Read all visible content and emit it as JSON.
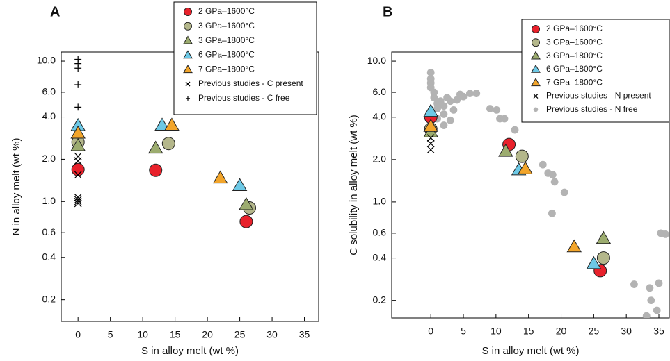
{
  "chart_data": [
    {
      "type": "scatter",
      "title": "A",
      "xlabel": "S in alloy melt (wt %)",
      "ylabel": "N in alloy melt (wt %)",
      "xlim": [
        -2.6,
        37.2
      ],
      "xticks": [
        0,
        5,
        10,
        15,
        20,
        25,
        30,
        35
      ],
      "ylim": [
        0.14,
        11.6
      ],
      "log_y": true,
      "yticks": [
        0.2,
        0.4,
        0.6,
        {
          "value": 1,
          "label": "1.0"
        },
        {
          "value": 2,
          "label": "2.0"
        },
        {
          "value": 4,
          "label": "4.0"
        },
        {
          "value": 6,
          "label": "6.0"
        },
        {
          "value": 10,
          "label": "10.0"
        }
      ],
      "legend": "upper right",
      "series": [
        {
          "name": "2 GPa–1600°C",
          "color": "#e8212b",
          "marker": "circle",
          "x": [
            0,
            12,
            26
          ],
          "values": [
            1.69,
            1.67,
            0.72
          ]
        },
        {
          "name": "3 GPa–1600°C",
          "color": "#b4b78b",
          "marker": "circle",
          "x": [
            0,
            14,
            26.5
          ],
          "values": [
            2.65,
            2.59,
            0.9
          ]
        },
        {
          "name": "3 GPa–1800°C",
          "color": "#9cac6f",
          "marker": "triangle",
          "x": [
            0,
            12,
            26
          ],
          "values": [
            2.5,
            2.4,
            0.95
          ]
        },
        {
          "name": "6 GPa–1800°C",
          "color": "#6dc9e6",
          "marker": "triangle",
          "x": [
            0,
            13,
            25
          ],
          "values": [
            3.48,
            3.5,
            1.3
          ]
        },
        {
          "name": "7 GPa–1800°C",
          "color": "#f2a52b",
          "marker": "triangle",
          "x": [
            0,
            14.5,
            22
          ],
          "values": [
            3.07,
            3.5,
            1.47
          ]
        },
        {
          "name": "Previous studies - C present",
          "color": "#000000",
          "marker": "x",
          "x": [
            0,
            0,
            0,
            0,
            0,
            0,
            0
          ],
          "values": [
            0.97,
            1.0,
            1.03,
            1.07,
            1.55,
            1.95,
            2.1
          ]
        },
        {
          "name": "Previous studies - C free",
          "color": "#000000",
          "marker": "plus",
          "x": [
            0,
            0,
            0,
            0,
            0
          ],
          "values": [
            10.3,
            9.6,
            8.9,
            6.8,
            4.7
          ]
        }
      ]
    },
    {
      "type": "scatter",
      "title": "B",
      "xlabel": "S in alloy melt (wt %)",
      "ylabel": "C solubility in alloy melt (wt %)",
      "xlim": [
        -6,
        36.6
      ],
      "xticks": [
        0,
        5,
        10,
        15,
        20,
        25,
        30,
        35
      ],
      "ylim": [
        0.15,
        11.6
      ],
      "log_y": true,
      "yticks": [
        0.2,
        0.4,
        0.6,
        {
          "value": 1,
          "label": "1.0"
        },
        {
          "value": 2,
          "label": "2.0"
        },
        {
          "value": 4,
          "label": "4.0"
        },
        {
          "value": 6,
          "label": "6.0"
        },
        {
          "value": 10,
          "label": "10.0"
        }
      ],
      "legend": "upper right",
      "series": [
        {
          "name": "Previous studies - N free",
          "color": "#b3b3b3",
          "marker": "dot",
          "x": [
            0,
            0,
            0,
            0,
            0.5,
            0.5,
            1,
            1,
            1.5,
            2,
            2,
            2.5,
            3,
            3,
            3.5,
            4,
            4.5,
            5,
            6,
            7,
            2,
            1,
            9.1,
            10.1,
            10.6,
            11.3,
            12.9,
            17.2,
            18,
            18.7,
            19,
            20.5,
            18.6,
            31.2,
            33.6,
            35,
            33.8,
            34.7,
            33.1,
            35.3,
            36
          ],
          "values": [
            8.3,
            7.5,
            7,
            6.5,
            6,
            5.5,
            5,
            4.6,
            5.2,
            4.8,
            4.2,
            5.5,
            3.8,
            5.2,
            4.5,
            5.3,
            5.8,
            5.6,
            5.9,
            5.9,
            3.5,
            3.9,
            4.6,
            4.5,
            3.9,
            3.9,
            3.25,
            1.84,
            1.6,
            1.56,
            1.39,
            1.17,
            0.83,
            0.26,
            0.245,
            0.265,
            0.2,
            0.17,
            0.155,
            0.6,
            0.59
          ]
        },
        {
          "name": "2 GPa–1600°C",
          "color": "#e8212b",
          "marker": "circle",
          "x": [
            0,
            12,
            26
          ],
          "values": [
            4.0,
            2.56,
            0.325
          ]
        },
        {
          "name": "3 GPa–1600°C",
          "color": "#b4b78b",
          "marker": "circle",
          "x": [
            0,
            14,
            26.5
          ],
          "values": [
            3.3,
            2.11,
            0.4
          ]
        },
        {
          "name": "3 GPa–1800°C",
          "color": "#9cac6f",
          "marker": "triangle",
          "x": [
            0,
            11.5,
            26.5
          ],
          "values": [
            3.14,
            2.29,
            0.55
          ]
        },
        {
          "name": "6 GPa–1800°C",
          "color": "#6dc9e6",
          "marker": "triangle",
          "x": [
            0,
            13.5,
            25
          ],
          "values": [
            4.4,
            1.69,
            0.365
          ]
        },
        {
          "name": "7 GPa–1800°C",
          "color": "#f2a52b",
          "marker": "triangle",
          "x": [
            0,
            14.5,
            22
          ],
          "values": [
            3.44,
            1.72,
            0.48
          ]
        },
        {
          "name": "Previous studies - N present",
          "color": "#000000",
          "marker": "x",
          "x": [
            0,
            0,
            0
          ],
          "values": [
            2.35,
            2.6,
            2.85
          ]
        }
      ]
    }
  ]
}
